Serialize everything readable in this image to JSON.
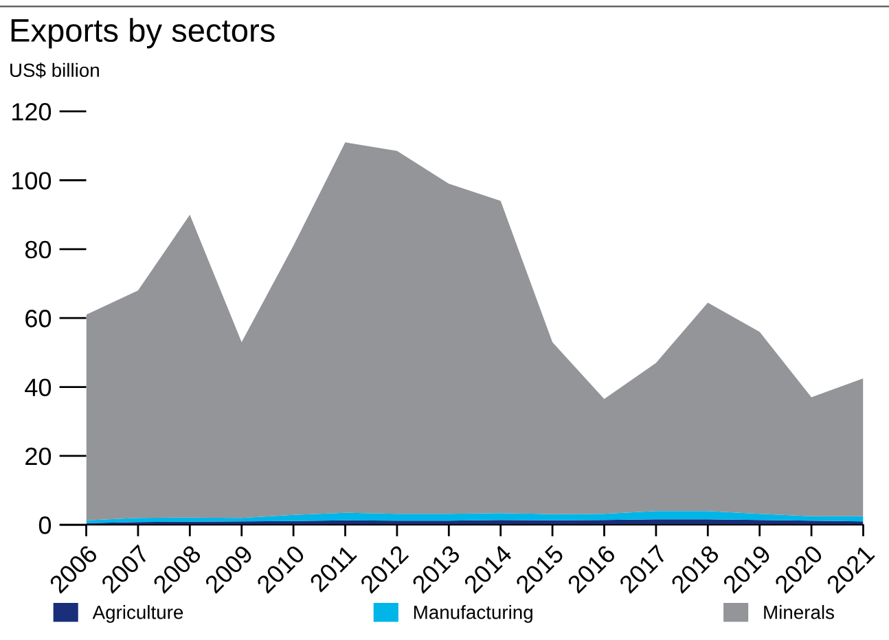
{
  "chart_data": {
    "type": "area",
    "stacked": true,
    "title": "Exports by sectors",
    "ylabel": "US$ billion",
    "categories": [
      "2006",
      "2007",
      "2008",
      "2009",
      "2010",
      "2011",
      "2012",
      "2013",
      "2014",
      "2015",
      "2016",
      "2017",
      "2018",
      "2019",
      "2020",
      "2021"
    ],
    "series": [
      {
        "name": "Agriculture",
        "color": "#1a2f7a",
        "values": [
          0.5,
          0.8,
          0.9,
          1.0,
          1.1,
          1.3,
          1.2,
          1.2,
          1.4,
          1.3,
          1.4,
          1.6,
          1.6,
          1.4,
          1.2,
          1.0
        ]
      },
      {
        "name": "Manufacturing",
        "color": "#00b5e8",
        "values": [
          0.8,
          1.2,
          1.2,
          1.0,
          1.8,
          2.2,
          2.0,
          2.0,
          2.0,
          1.8,
          1.8,
          2.4,
          2.4,
          1.8,
          1.3,
          1.5
        ]
      },
      {
        "name": "Minerals",
        "color": "#939598",
        "values": [
          59.7,
          66.0,
          87.9,
          51.0,
          78.1,
          107.5,
          105.3,
          95.8,
          90.6,
          49.9,
          33.3,
          43.0,
          60.5,
          52.8,
          34.5,
          40.0
        ]
      }
    ],
    "ylim": [
      0,
      120
    ],
    "yticks": [
      0,
      20,
      40,
      60,
      80,
      100,
      120
    ],
    "grid": false,
    "legend": "bottom"
  }
}
